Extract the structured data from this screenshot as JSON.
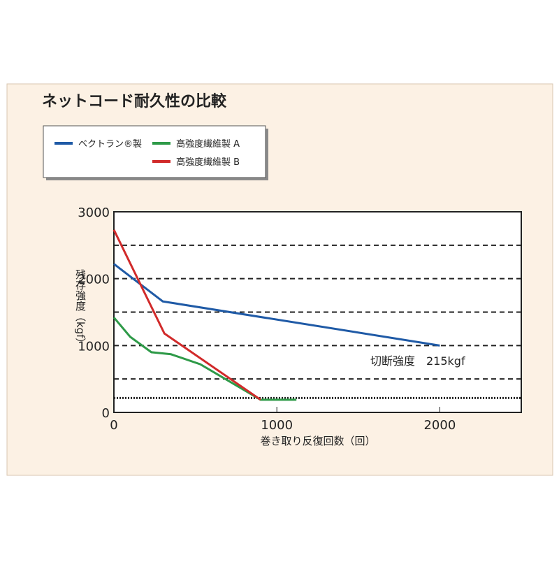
{
  "chart_data": {
    "type": "line",
    "title": "ネットコード耐久性の比較",
    "x_label": "巻き取り反復回数（回）",
    "y_label": "残存強度（kgf）",
    "xlim": [
      0,
      2500
    ],
    "xticks": [
      0,
      1000,
      2000
    ],
    "ylim": [
      0,
      3000
    ],
    "yticks": [
      0,
      1000,
      2000,
      3000
    ],
    "grid_values": [
      500,
      1000,
      1500,
      2000,
      2500
    ],
    "threshold": 215,
    "annotation": "切断強度　215kgf",
    "series": [
      {
        "name": "ベクトラン®製",
        "color": "#1f5aa6",
        "x": [
          0,
          300,
          2000
        ],
        "values": [
          2220,
          1660,
          1000
        ]
      },
      {
        "name": "高強度繊維製 A",
        "color": "#2e9a48",
        "x": [
          0,
          100,
          230,
          350,
          530,
          900,
          1120
        ],
        "values": [
          1420,
          1130,
          900,
          870,
          720,
          190,
          190
        ]
      },
      {
        "name": "高強度繊維製 B",
        "color": "#d12a2a",
        "x": [
          0,
          310,
          900
        ],
        "values": [
          2730,
          1180,
          190
        ]
      }
    ]
  }
}
